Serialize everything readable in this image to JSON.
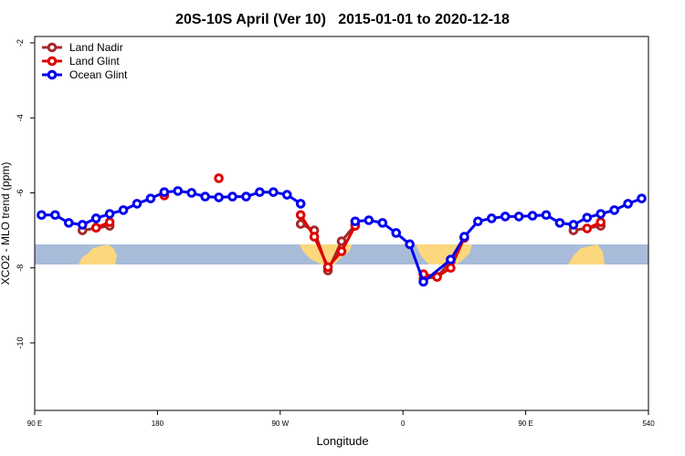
{
  "chart_data": {
    "type": "line",
    "title": "20S-10S April (Ver 10)   2015-01-01 to 2020-12-18",
    "xlabel": "Longitude",
    "ylabel": "XCO2 - MLO trend (ppm)",
    "xlim": [
      90,
      540
    ],
    "xticks": [
      {
        "value": 90,
        "label": "90 E"
      },
      180,
      {
        "value": 270,
        "label": "90 W"
      },
      {
        "value": 360,
        "label": "0"
      },
      {
        "value": 450,
        "label": "90 E"
      },
      540
    ],
    "ylim": [
      -11.8,
      -1.83
    ],
    "yticks": [
      -10,
      -8,
      -6,
      -4,
      -2
    ],
    "legend": "top-left",
    "series": [
      {
        "name": "Land Nadir",
        "color": "#a52a2a",
        "x": [
          125,
          145,
          155,
          285,
          295,
          305,
          315,
          325,
          335,
          375,
          385,
          395,
          405,
          485,
          505
        ],
        "values": [
          -7.0,
          -6.88,
          null,
          -6.83,
          -7.0,
          -8.07,
          -7.29,
          -6.85,
          null,
          -8.29,
          -8.24,
          -7.83,
          null,
          -7.0,
          -6.88
        ]
      },
      {
        "name": "Land Glint",
        "color": "#e00000",
        "x": [
          135,
          145,
          155,
          185,
          195,
          225,
          235,
          285,
          295,
          305,
          315,
          325,
          335,
          375,
          385,
          395,
          405,
          415,
          495,
          505
        ],
        "values": [
          -6.93,
          -6.78,
          null,
          -6.07,
          null,
          -5.61,
          null,
          -6.59,
          -7.17,
          -7.98,
          -7.56,
          -6.88,
          null,
          -8.17,
          -8.24,
          -8.0,
          -7.2,
          null,
          -6.95,
          -6.78
        ]
      },
      {
        "name": "Ocean Glint",
        "color": "#0000ee",
        "x": [
          95,
          105,
          115,
          125,
          135,
          145,
          155,
          165,
          175,
          185,
          195,
          205,
          215,
          225,
          235,
          245,
          255,
          265,
          275,
          285,
          295,
          325,
          335,
          345,
          355,
          365,
          375,
          395,
          405,
          415,
          425,
          435,
          445,
          455,
          465,
          475,
          485,
          495,
          505,
          515,
          525,
          535
        ],
        "values": [
          -6.59,
          -6.59,
          -6.8,
          -6.85,
          -6.68,
          -6.56,
          -6.46,
          -6.29,
          -6.15,
          -5.98,
          -5.95,
          -6.0,
          -6.1,
          -6.12,
          -6.1,
          -6.1,
          -5.98,
          -5.98,
          -6.05,
          -6.29,
          null,
          -6.76,
          -6.73,
          -6.8,
          -7.07,
          -7.37,
          -8.37,
          -7.78,
          -7.17,
          -6.76,
          -6.68,
          -6.63,
          -6.63,
          -6.61,
          -6.59,
          -6.8,
          -6.85,
          -6.66,
          -6.56,
          -6.46,
          -6.29,
          -6.15
        ]
      }
    ]
  }
}
